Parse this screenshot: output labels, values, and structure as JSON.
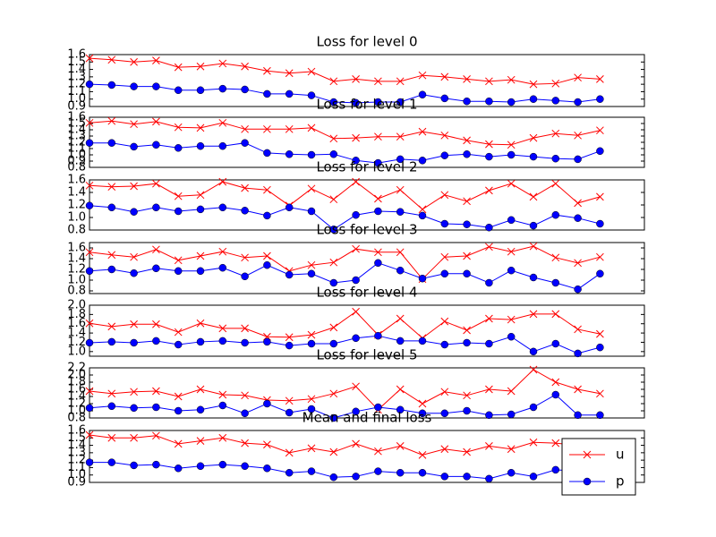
{
  "chart_data": [
    {
      "type": "line",
      "title": "Loss for level 0",
      "x": [
        0,
        1,
        2,
        3,
        4,
        5,
        6,
        7,
        8,
        9,
        10,
        11,
        12,
        13,
        14,
        15,
        16,
        17,
        18,
        19,
        20,
        21,
        22,
        23
      ],
      "xlim": [
        0,
        25
      ],
      "ylim": [
        0.9,
        1.6
      ],
      "yticks": [
        0.9,
        {
          "value": 1,
          "label": "1.0"
        },
        1.1,
        1.2,
        1.3,
        1.4,
        1.5,
        1.6
      ],
      "series": [
        {
          "name": "u",
          "color": "#ff0000",
          "marker": "x",
          "values": [
            1.55,
            1.53,
            1.5,
            1.52,
            1.43,
            1.44,
            1.48,
            1.44,
            1.38,
            1.35,
            1.37,
            1.24,
            1.27,
            1.24,
            1.24,
            1.32,
            1.3,
            1.27,
            1.24,
            1.26,
            1.2,
            1.21,
            1.29,
            1.27
          ]
        },
        {
          "name": "p",
          "color": "#0000ff",
          "marker": "o",
          "values": [
            1.2,
            1.19,
            1.17,
            1.17,
            1.12,
            1.12,
            1.14,
            1.13,
            1.07,
            1.07,
            1.05,
            0.96,
            0.95,
            0.96,
            0.96,
            1.06,
            1.01,
            0.97,
            0.97,
            0.96,
            1.0,
            0.98,
            0.96,
            1.0
          ]
        }
      ]
    },
    {
      "type": "line",
      "title": "Loss for level 1",
      "x": [
        0,
        1,
        2,
        3,
        4,
        5,
        6,
        7,
        8,
        9,
        10,
        11,
        12,
        13,
        14,
        15,
        16,
        17,
        18,
        19,
        20,
        21,
        22,
        23
      ],
      "xlim": [
        0,
        25
      ],
      "ylim": [
        0.8,
        1.6
      ],
      "yticks": [
        0.8,
        0.9,
        {
          "value": 1,
          "label": "1.0"
        },
        1.1,
        1.2,
        1.3,
        1.4,
        1.5,
        1.6
      ],
      "series": [
        {
          "name": "u",
          "color": "#ff0000",
          "marker": "x",
          "values": [
            1.51,
            1.54,
            1.49,
            1.53,
            1.44,
            1.43,
            1.51,
            1.41,
            1.41,
            1.41,
            1.43,
            1.26,
            1.27,
            1.29,
            1.29,
            1.37,
            1.31,
            1.23,
            1.17,
            1.16,
            1.27,
            1.34,
            1.31,
            1.39
          ]
        },
        {
          "name": "p",
          "color": "#0000ff",
          "marker": "o",
          "values": [
            1.19,
            1.19,
            1.13,
            1.16,
            1.11,
            1.14,
            1.14,
            1.19,
            1.03,
            1.01,
            1.0,
            1.01,
            0.91,
            0.87,
            0.93,
            0.91,
            0.99,
            1.01,
            0.97,
            1.0,
            0.97,
            0.94,
            0.93,
            1.06
          ]
        }
      ]
    },
    {
      "type": "line",
      "title": "Loss for level 2",
      "x": [
        0,
        1,
        2,
        3,
        4,
        5,
        6,
        7,
        8,
        9,
        10,
        11,
        12,
        13,
        14,
        15,
        16,
        17,
        18,
        19,
        20,
        21,
        22,
        23
      ],
      "xlim": [
        0,
        25
      ],
      "ylim": [
        0.8,
        1.6
      ],
      "yticks": [
        0.8,
        {
          "value": 1,
          "label": "1.0"
        },
        1.2,
        1.4,
        1.6
      ],
      "series": [
        {
          "name": "u",
          "color": "#ff0000",
          "marker": "x",
          "values": [
            1.51,
            1.49,
            1.5,
            1.54,
            1.34,
            1.36,
            1.57,
            1.47,
            1.44,
            1.19,
            1.46,
            1.29,
            1.57,
            1.3,
            1.44,
            1.13,
            1.36,
            1.26,
            1.43,
            1.54,
            1.33,
            1.54,
            1.23,
            1.33
          ]
        },
        {
          "name": "p",
          "color": "#0000ff",
          "marker": "o",
          "values": [
            1.19,
            1.16,
            1.09,
            1.16,
            1.1,
            1.13,
            1.16,
            1.11,
            1.03,
            1.16,
            1.1,
            0.81,
            1.04,
            1.1,
            1.09,
            1.03,
            0.9,
            0.89,
            0.84,
            0.96,
            0.87,
            1.04,
            0.99,
            0.9
          ]
        }
      ]
    },
    {
      "type": "line",
      "title": "Loss for level 3",
      "x": [
        0,
        1,
        2,
        3,
        4,
        5,
        6,
        7,
        8,
        9,
        10,
        11,
        12,
        13,
        14,
        15,
        16,
        17,
        18,
        19,
        20,
        21,
        22,
        23
      ],
      "xlim": [
        0,
        25
      ],
      "ylim": [
        0.75,
        1.7
      ],
      "yticks": [
        0.8,
        {
          "value": 1,
          "label": "1.0"
        },
        1.2,
        1.4,
        1.6
      ],
      "series": [
        {
          "name": "u",
          "color": "#ff0000",
          "marker": "x",
          "values": [
            1.52,
            1.47,
            1.43,
            1.57,
            1.37,
            1.45,
            1.53,
            1.42,
            1.45,
            1.17,
            1.28,
            1.33,
            1.58,
            1.52,
            1.52,
            1.02,
            1.43,
            1.45,
            1.62,
            1.53,
            1.63,
            1.42,
            1.32,
            1.43
          ]
        },
        {
          "name": "p",
          "color": "#0000ff",
          "marker": "o",
          "values": [
            1.17,
            1.2,
            1.13,
            1.22,
            1.17,
            1.17,
            1.23,
            1.07,
            1.28,
            1.1,
            1.12,
            0.95,
            1.0,
            1.32,
            1.18,
            1.03,
            1.12,
            1.12,
            0.95,
            1.18,
            1.05,
            0.95,
            0.83,
            1.12
          ]
        }
      ]
    },
    {
      "type": "line",
      "title": "Loss for level 4",
      "x": [
        0,
        1,
        2,
        3,
        4,
        5,
        6,
        7,
        8,
        9,
        10,
        11,
        12,
        13,
        14,
        15,
        16,
        17,
        18,
        19,
        20,
        21,
        22,
        23
      ],
      "xlim": [
        0,
        25
      ],
      "ylim": [
        0.9,
        2.0
      ],
      "yticks": [
        {
          "value": 1,
          "label": "1.0"
        },
        1.2,
        1.4,
        1.6,
        1.8,
        {
          "value": 2,
          "label": "2.0"
        }
      ],
      "series": [
        {
          "name": "u",
          "color": "#ff0000",
          "marker": "x",
          "values": [
            1.61,
            1.54,
            1.59,
            1.59,
            1.42,
            1.61,
            1.5,
            1.5,
            1.32,
            1.31,
            1.36,
            1.52,
            1.86,
            1.36,
            1.71,
            1.29,
            1.65,
            1.46,
            1.71,
            1.69,
            1.81,
            1.81,
            1.48,
            1.38
          ]
        },
        {
          "name": "p",
          "color": "#0000ff",
          "marker": "o",
          "values": [
            1.19,
            1.21,
            1.19,
            1.23,
            1.15,
            1.21,
            1.23,
            1.19,
            1.21,
            1.13,
            1.17,
            1.17,
            1.29,
            1.34,
            1.23,
            1.23,
            1.15,
            1.19,
            1.17,
            1.32,
            1.0,
            1.17,
            0.96,
            1.09
          ]
        }
      ]
    },
    {
      "type": "line",
      "title": "Loss for level 5",
      "x": [
        0,
        1,
        2,
        3,
        4,
        5,
        6,
        7,
        8,
        9,
        10,
        11,
        12,
        13,
        14,
        15,
        16,
        17,
        18,
        19,
        20,
        21,
        22,
        23
      ],
      "xlim": [
        0,
        25
      ],
      "ylim": [
        0.8,
        2.2
      ],
      "yticks": [
        0.8,
        {
          "value": 1,
          "label": "1.0"
        },
        1.2,
        1.4,
        1.6,
        1.8,
        {
          "value": 2,
          "label": "2.0"
        },
        2.2
      ],
      "series": [
        {
          "name": "u",
          "color": "#ff0000",
          "marker": "x",
          "values": [
            1.55,
            1.48,
            1.53,
            1.55,
            1.4,
            1.6,
            1.45,
            1.43,
            1.3,
            1.28,
            1.33,
            1.48,
            1.68,
            1.03,
            1.6,
            1.2,
            1.53,
            1.43,
            1.6,
            1.55,
            2.15,
            1.8,
            1.6,
            1.48
          ]
        },
        {
          "name": "p",
          "color": "#0000ff",
          "marker": "o",
          "values": [
            1.08,
            1.13,
            1.08,
            1.1,
            1.0,
            1.03,
            1.15,
            0.93,
            1.2,
            0.95,
            1.05,
            0.8,
            0.98,
            1.1,
            1.03,
            0.93,
            0.93,
            1.0,
            0.88,
            0.9,
            1.1,
            1.45,
            0.88,
            0.88
          ]
        }
      ]
    },
    {
      "type": "line",
      "title": "Mean and final loss",
      "x": [
        0,
        1,
        2,
        3,
        4,
        5,
        6,
        7,
        8,
        9,
        10,
        11,
        12,
        13,
        14,
        15,
        16,
        17,
        18,
        19,
        20,
        21,
        22,
        23
      ],
      "xlim": [
        0,
        25
      ],
      "ylim": [
        0.9,
        1.6
      ],
      "yticks": [
        0.9,
        {
          "value": 1,
          "label": "1.0"
        },
        1.1,
        1.2,
        1.3,
        1.4,
        1.5,
        1.6
      ],
      "legend": "lower right",
      "series": [
        {
          "name": "u",
          "color": "#ff0000",
          "marker": "x",
          "values": [
            1.54,
            1.5,
            1.5,
            1.53,
            1.42,
            1.46,
            1.5,
            1.43,
            1.41,
            1.3,
            1.36,
            1.31,
            1.42,
            1.32,
            1.39,
            1.27,
            1.35,
            1.31,
            1.39,
            1.35,
            1.44,
            1.43,
            1.4,
            1.42
          ]
        },
        {
          "name": "p",
          "color": "#0000ff",
          "marker": "o",
          "values": [
            1.17,
            1.17,
            1.13,
            1.14,
            1.09,
            1.12,
            1.14,
            1.12,
            1.09,
            1.03,
            1.05,
            0.97,
            0.98,
            1.05,
            1.03,
            1.03,
            0.98,
            0.98,
            0.95,
            1.03,
            0.98,
            1.07,
            1.05,
            1.02
          ]
        }
      ]
    }
  ]
}
